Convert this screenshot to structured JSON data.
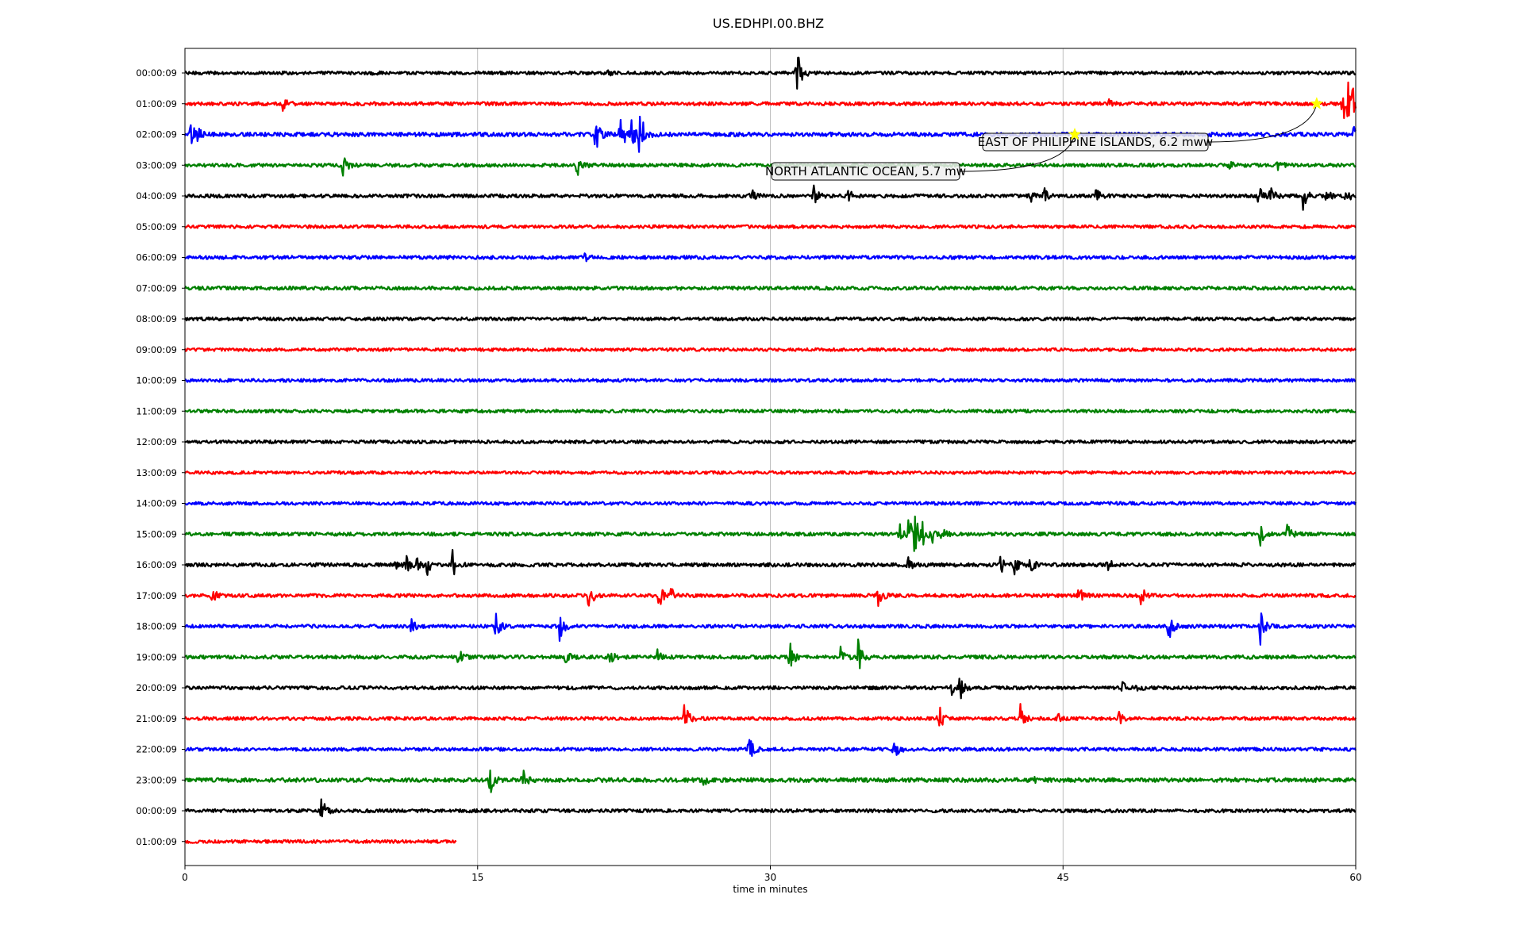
{
  "chart_data": {
    "type": "line",
    "title": "US.EDHPI.00.BHZ",
    "xlabel": "time in minutes",
    "ylabel": "",
    "xlim": [
      0,
      60
    ],
    "xticks": [
      "0",
      "15",
      "30",
      "45",
      "60"
    ],
    "grid": "vertical",
    "colors_cycle": [
      "#000000",
      "#ff0000",
      "#0000ff",
      "#008000"
    ],
    "rows": [
      {
        "label": "00:00:09",
        "color": "#000000",
        "end": 60,
        "noise": 2.0,
        "events": [
          {
            "t": 9.5,
            "a": 3
          },
          {
            "t": 21.7,
            "a": 3
          },
          {
            "t": 31.4,
            "a": 26
          },
          {
            "t": 31.3,
            "a": 10
          }
        ]
      },
      {
        "label": "01:00:09",
        "color": "#ff0000",
        "end": 60,
        "noise": 2.2,
        "events": [
          {
            "t": 5.0,
            "a": 8
          },
          {
            "t": 47.3,
            "a": 5
          },
          {
            "t": 59.3,
            "a": 45
          },
          {
            "t": 59.6,
            "a": 32
          },
          {
            "t": 59.8,
            "a": 24
          }
        ]
      },
      {
        "label": "02:00:09",
        "color": "#0000ff",
        "end": 60,
        "noise": 2.6,
        "events": [
          {
            "t": 0.3,
            "a": 14
          },
          {
            "t": 0.6,
            "a": 9
          },
          {
            "t": 21.0,
            "a": 30
          },
          {
            "t": 22.3,
            "a": 28
          },
          {
            "t": 22.9,
            "a": 22
          },
          {
            "t": 23.3,
            "a": 34
          },
          {
            "t": 59.9,
            "a": 8
          }
        ]
      },
      {
        "label": "03:00:09",
        "color": "#008000",
        "end": 60,
        "noise": 2.2,
        "events": [
          {
            "t": 8.1,
            "a": 16
          },
          {
            "t": 20.1,
            "a": 22
          },
          {
            "t": 53.5,
            "a": 5
          },
          {
            "t": 56.0,
            "a": 7
          }
        ]
      },
      {
        "label": "04:00:09",
        "color": "#000000",
        "end": 60,
        "noise": 2.2,
        "events": [
          {
            "t": 29.0,
            "a": 10
          },
          {
            "t": 32.2,
            "a": 13
          },
          {
            "t": 34.0,
            "a": 9
          },
          {
            "t": 43.3,
            "a": 8
          },
          {
            "t": 44.0,
            "a": 11
          },
          {
            "t": 46.7,
            "a": 10
          },
          {
            "t": 55.0,
            "a": 14
          },
          {
            "t": 55.6,
            "a": 12
          },
          {
            "t": 57.3,
            "a": 20
          },
          {
            "t": 58.5,
            "a": 9
          },
          {
            "t": 59.5,
            "a": 10
          }
        ]
      },
      {
        "label": "05:00:09",
        "color": "#ff0000",
        "end": 60,
        "noise": 2.0,
        "events": []
      },
      {
        "label": "06:00:09",
        "color": "#0000ff",
        "end": 60,
        "noise": 2.2,
        "events": [
          {
            "t": 20.5,
            "a": 4
          }
        ]
      },
      {
        "label": "07:00:09",
        "color": "#008000",
        "end": 60,
        "noise": 2.2,
        "events": []
      },
      {
        "label": "08:00:09",
        "color": "#000000",
        "end": 60,
        "noise": 2.0,
        "events": []
      },
      {
        "label": "09:00:09",
        "color": "#ff0000",
        "end": 60,
        "noise": 1.9,
        "events": []
      },
      {
        "label": "10:00:09",
        "color": "#0000ff",
        "end": 60,
        "noise": 2.0,
        "events": []
      },
      {
        "label": "11:00:09",
        "color": "#008000",
        "end": 60,
        "noise": 2.0,
        "events": []
      },
      {
        "label": "12:00:09",
        "color": "#000000",
        "end": 60,
        "noise": 2.0,
        "events": []
      },
      {
        "label": "13:00:09",
        "color": "#ff0000",
        "end": 60,
        "noise": 1.9,
        "events": []
      },
      {
        "label": "14:00:09",
        "color": "#0000ff",
        "end": 60,
        "noise": 2.0,
        "events": []
      },
      {
        "label": "15:00:09",
        "color": "#008000",
        "end": 60,
        "noise": 2.2,
        "events": [
          {
            "t": 36.6,
            "a": 14
          },
          {
            "t": 37.1,
            "a": 52
          },
          {
            "t": 37.4,
            "a": 18
          },
          {
            "t": 37.8,
            "a": 12
          },
          {
            "t": 38.3,
            "a": 10
          },
          {
            "t": 38.8,
            "a": 8
          },
          {
            "t": 55.1,
            "a": 14
          },
          {
            "t": 56.5,
            "a": 12
          }
        ]
      },
      {
        "label": "16:00:09",
        "color": "#000000",
        "end": 60,
        "noise": 2.3,
        "events": [
          {
            "t": 10.8,
            "a": 9
          },
          {
            "t": 11.3,
            "a": 12
          },
          {
            "t": 11.9,
            "a": 9
          },
          {
            "t": 12.4,
            "a": 14
          },
          {
            "t": 13.7,
            "a": 18
          },
          {
            "t": 37.0,
            "a": 12
          },
          {
            "t": 41.8,
            "a": 10
          },
          {
            "t": 42.5,
            "a": 12
          },
          {
            "t": 43.3,
            "a": 10
          },
          {
            "t": 47.3,
            "a": 9
          }
        ]
      },
      {
        "label": "17:00:09",
        "color": "#ff0000",
        "end": 60,
        "noise": 2.2,
        "events": [
          {
            "t": 1.4,
            "a": 10
          },
          {
            "t": 20.7,
            "a": 20
          },
          {
            "t": 24.3,
            "a": 16
          },
          {
            "t": 24.9,
            "a": 10
          },
          {
            "t": 35.5,
            "a": 16
          },
          {
            "t": 45.8,
            "a": 14
          },
          {
            "t": 49.0,
            "a": 12
          }
        ]
      },
      {
        "label": "18:00:09",
        "color": "#0000ff",
        "end": 60,
        "noise": 2.2,
        "events": [
          {
            "t": 11.6,
            "a": 8
          },
          {
            "t": 15.9,
            "a": 18
          },
          {
            "t": 19.2,
            "a": 20
          },
          {
            "t": 50.4,
            "a": 22
          },
          {
            "t": 55.1,
            "a": 24
          }
        ]
      },
      {
        "label": "19:00:09",
        "color": "#008000",
        "end": 60,
        "noise": 2.3,
        "events": [
          {
            "t": 14.0,
            "a": 10
          },
          {
            "t": 19.5,
            "a": 9
          },
          {
            "t": 21.7,
            "a": 12
          },
          {
            "t": 24.2,
            "a": 10
          },
          {
            "t": 31.0,
            "a": 20
          },
          {
            "t": 33.6,
            "a": 12
          },
          {
            "t": 34.5,
            "a": 20
          }
        ]
      },
      {
        "label": "20:00:09",
        "color": "#000000",
        "end": 60,
        "noise": 2.1,
        "events": [
          {
            "t": 39.3,
            "a": 12
          },
          {
            "t": 39.7,
            "a": 16
          },
          {
            "t": 48.0,
            "a": 8
          },
          {
            "t": 48.8,
            "a": 6
          }
        ]
      },
      {
        "label": "21:00:09",
        "color": "#ff0000",
        "end": 60,
        "noise": 2.1,
        "events": [
          {
            "t": 25.6,
            "a": 20
          },
          {
            "t": 38.6,
            "a": 22
          },
          {
            "t": 42.8,
            "a": 18
          },
          {
            "t": 44.6,
            "a": 12
          },
          {
            "t": 47.8,
            "a": 10
          }
        ]
      },
      {
        "label": "22:00:09",
        "color": "#0000ff",
        "end": 60,
        "noise": 2.1,
        "events": [
          {
            "t": 28.9,
            "a": 16
          },
          {
            "t": 36.3,
            "a": 20
          }
        ]
      },
      {
        "label": "23:00:09",
        "color": "#008000",
        "end": 60,
        "noise": 2.6,
        "events": [
          {
            "t": 15.6,
            "a": 22
          },
          {
            "t": 17.3,
            "a": 16
          },
          {
            "t": 26.6,
            "a": 6
          },
          {
            "t": 43.5,
            "a": 5
          }
        ]
      },
      {
        "label": "00:00:09",
        "color": "#000000",
        "end": 60,
        "noise": 2.1,
        "events": [
          {
            "t": 7.0,
            "a": 16
          }
        ]
      },
      {
        "label": "01:00:09",
        "color": "#ff0000",
        "end": 13.9,
        "noise": 2.0,
        "events": []
      }
    ],
    "annotations": [
      {
        "text": "EAST OF PHILIPPINE ISLANDS, 6.2 mww",
        "row": 1,
        "t": 58.0
      },
      {
        "text": "NORTH ATLANTIC OCEAN, 5.7 mw",
        "row": 2,
        "t": 45.6
      }
    ],
    "marker_color": "#ffff00",
    "box_fill": "#eeeeee"
  }
}
